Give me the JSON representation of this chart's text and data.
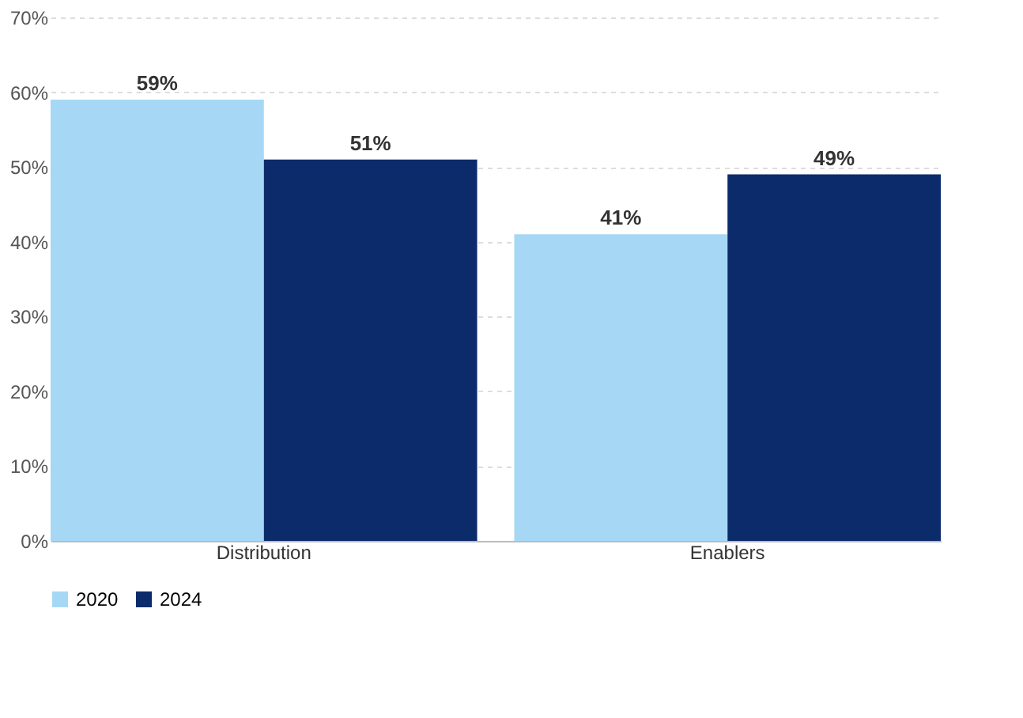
{
  "chart_data": {
    "type": "bar",
    "categories": [
      "Distribution",
      "Enablers"
    ],
    "series": [
      {
        "name": "2020",
        "color": "#a6d8f6",
        "values": [
          59,
          41
        ],
        "value_labels": [
          "59%",
          "41%"
        ]
      },
      {
        "name": "2024",
        "color": "#0c2b6b",
        "values": [
          51,
          49
        ],
        "value_labels": [
          "51%",
          "49%"
        ]
      }
    ],
    "ylim": [
      0,
      70
    ],
    "yticks": [
      {
        "value": 0,
        "label": "0%"
      },
      {
        "value": 10,
        "label": "10%"
      },
      {
        "value": 20,
        "label": "20%"
      },
      {
        "value": 30,
        "label": "30%"
      },
      {
        "value": 40,
        "label": "40%"
      },
      {
        "value": 50,
        "label": "50%"
      },
      {
        "value": 60,
        "label": "60%"
      },
      {
        "value": 70,
        "label": "70%"
      }
    ],
    "grid": "y",
    "legend": "bottom"
  }
}
